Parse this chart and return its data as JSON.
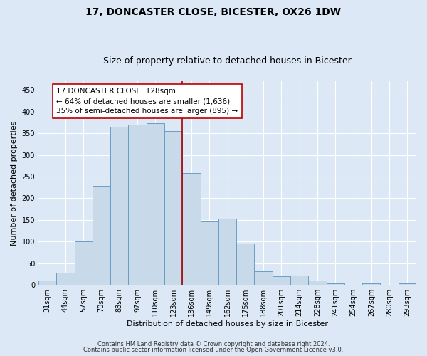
{
  "title": "17, DONCASTER CLOSE, BICESTER, OX26 1DW",
  "subtitle": "Size of property relative to detached houses in Bicester",
  "xlabel": "Distribution of detached houses by size in Bicester",
  "ylabel": "Number of detached properties",
  "categories": [
    "31sqm",
    "44sqm",
    "57sqm",
    "70sqm",
    "83sqm",
    "97sqm",
    "110sqm",
    "123sqm",
    "136sqm",
    "149sqm",
    "162sqm",
    "175sqm",
    "188sqm",
    "201sqm",
    "214sqm",
    "228sqm",
    "241sqm",
    "254sqm",
    "267sqm",
    "280sqm",
    "293sqm"
  ],
  "values": [
    10,
    28,
    100,
    228,
    365,
    370,
    373,
    355,
    258,
    146,
    153,
    95,
    31,
    20,
    22,
    10,
    4,
    0,
    3,
    0,
    3
  ],
  "bar_color": "#c8daea",
  "bar_edge_color": "#6a9ec5",
  "marker_color": "#aa0000",
  "annotation_text": "17 DONCASTER CLOSE: 128sqm\n← 64% of detached houses are smaller (1,636)\n35% of semi-detached houses are larger (895) →",
  "annotation_box_color": "#ffffff",
  "annotation_border_color": "#bb0000",
  "ylim": [
    0,
    470
  ],
  "yticks": [
    0,
    50,
    100,
    150,
    200,
    250,
    300,
    350,
    400,
    450
  ],
  "footer1": "Contains HM Land Registry data © Crown copyright and database right 2024.",
  "footer2": "Contains public sector information licensed under the Open Government Licence v3.0.",
  "bg_color": "#dce8f5",
  "plot_bg_color": "#dce8f5",
  "title_fontsize": 10,
  "subtitle_fontsize": 9,
  "axis_label_fontsize": 8,
  "tick_fontsize": 7,
  "annotation_fontsize": 7.5,
  "footer_fontsize": 6
}
